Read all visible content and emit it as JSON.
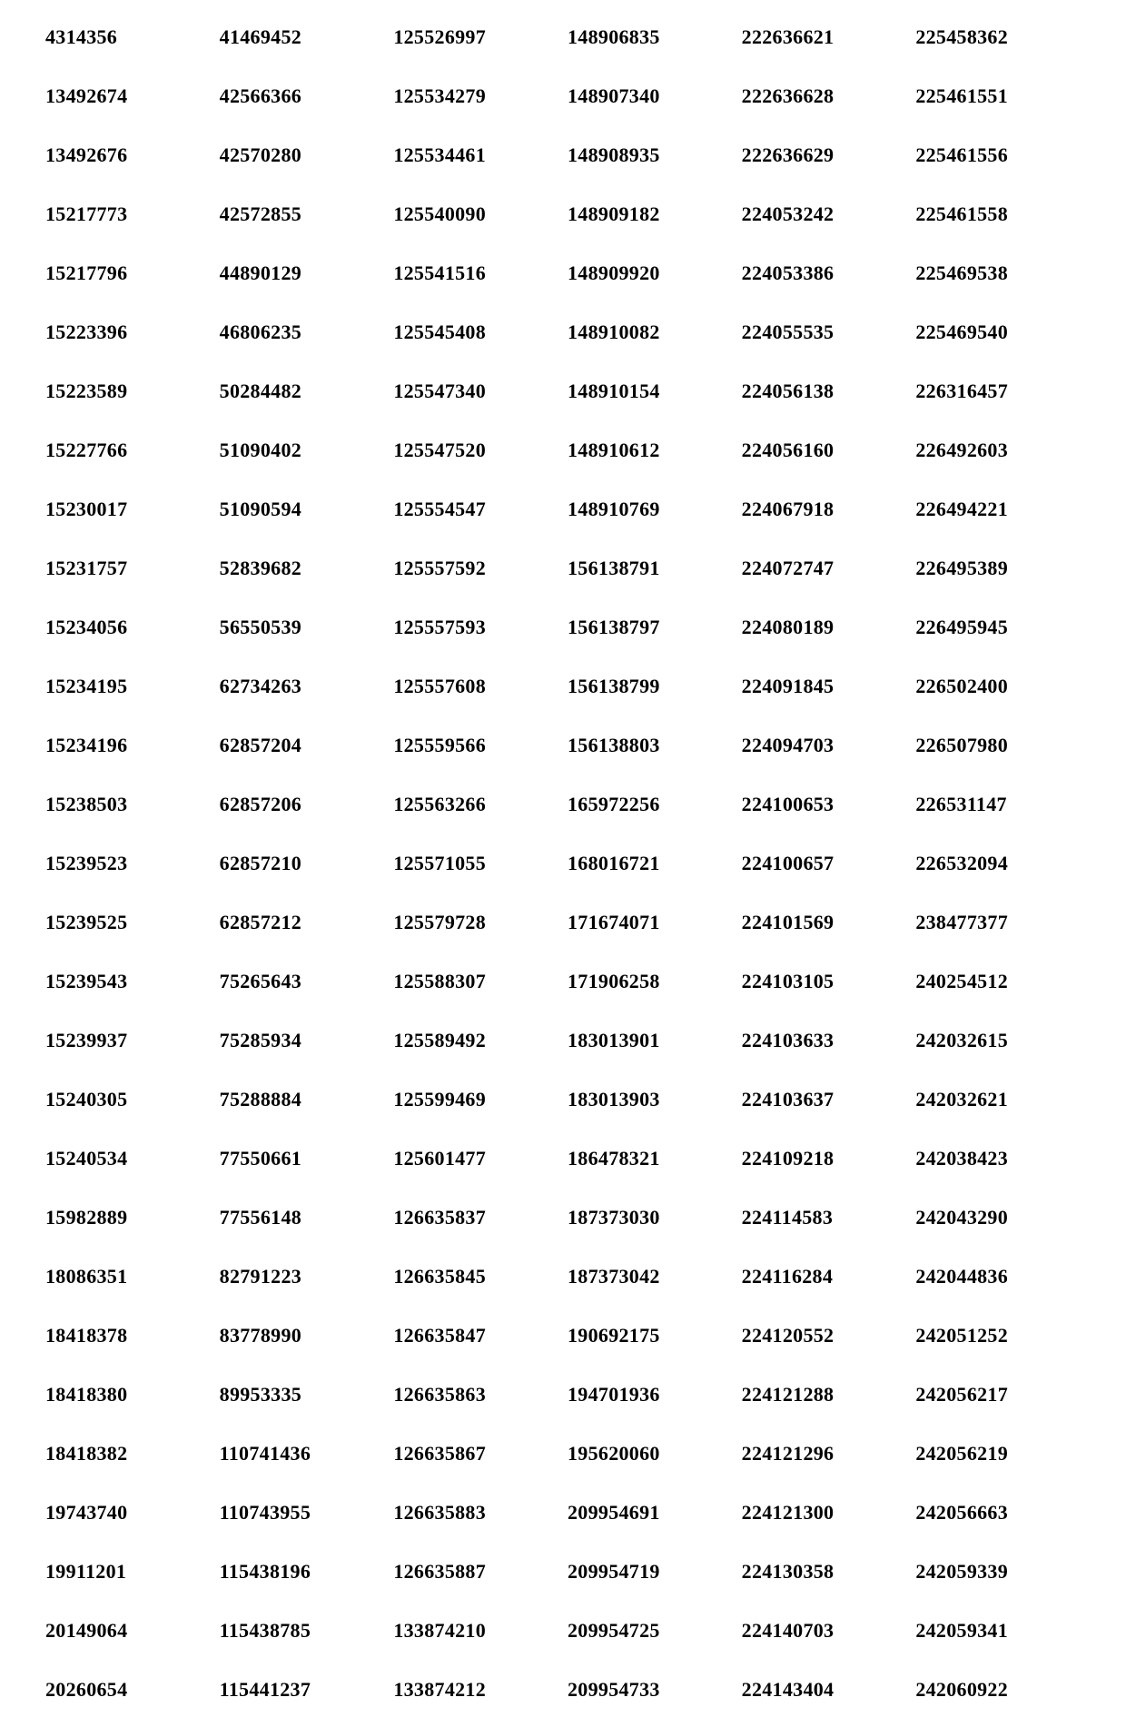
{
  "table": {
    "type": "table",
    "columns": 6,
    "rows": 29,
    "font_family": "Times New Roman",
    "font_weight": "bold",
    "font_size": 22,
    "text_color": "#000000",
    "background_color": "#ffffff",
    "data": [
      [
        "4314356",
        "41469452",
        "125526997",
        "148906835",
        "222636621",
        "225458362"
      ],
      [
        "13492674",
        "42566366",
        "125534279",
        "148907340",
        "222636628",
        "225461551"
      ],
      [
        "13492676",
        "42570280",
        "125534461",
        "148908935",
        "222636629",
        "225461556"
      ],
      [
        "15217773",
        "42572855",
        "125540090",
        "148909182",
        "224053242",
        "225461558"
      ],
      [
        "15217796",
        "44890129",
        "125541516",
        "148909920",
        "224053386",
        "225469538"
      ],
      [
        "15223396",
        "46806235",
        "125545408",
        "148910082",
        "224055535",
        "225469540"
      ],
      [
        "15223589",
        "50284482",
        "125547340",
        "148910154",
        "224056138",
        "226316457"
      ],
      [
        "15227766",
        "51090402",
        "125547520",
        "148910612",
        "224056160",
        "226492603"
      ],
      [
        "15230017",
        "51090594",
        "125554547",
        "148910769",
        "224067918",
        "226494221"
      ],
      [
        "15231757",
        "52839682",
        "125557592",
        "156138791",
        "224072747",
        "226495389"
      ],
      [
        "15234056",
        "56550539",
        "125557593",
        "156138797",
        "224080189",
        "226495945"
      ],
      [
        "15234195",
        "62734263",
        "125557608",
        "156138799",
        "224091845",
        "226502400"
      ],
      [
        "15234196",
        "62857204",
        "125559566",
        "156138803",
        "224094703",
        "226507980"
      ],
      [
        "15238503",
        "62857206",
        "125563266",
        "165972256",
        "224100653",
        "226531147"
      ],
      [
        "15239523",
        "62857210",
        "125571055",
        "168016721",
        "224100657",
        "226532094"
      ],
      [
        "15239525",
        "62857212",
        "125579728",
        "171674071",
        "224101569",
        "238477377"
      ],
      [
        "15239543",
        "75265643",
        "125588307",
        "171906258",
        "224103105",
        "240254512"
      ],
      [
        "15239937",
        "75285934",
        "125589492",
        "183013901",
        "224103633",
        "242032615"
      ],
      [
        "15240305",
        "75288884",
        "125599469",
        "183013903",
        "224103637",
        "242032621"
      ],
      [
        "15240534",
        "77550661",
        "125601477",
        "186478321",
        "224109218",
        "242038423"
      ],
      [
        "15982889",
        "77556148",
        "126635837",
        "187373030",
        "224114583",
        "242043290"
      ],
      [
        "18086351",
        "82791223",
        "126635845",
        "187373042",
        "224116284",
        "242044836"
      ],
      [
        "18418378",
        "83778990",
        "126635847",
        "190692175",
        "224120552",
        "242051252"
      ],
      [
        "18418380",
        "89953335",
        "126635863",
        "194701936",
        "224121288",
        "242056217"
      ],
      [
        "18418382",
        "110741436",
        "126635867",
        "195620060",
        "224121296",
        "242056219"
      ],
      [
        "19743740",
        "110743955",
        "126635883",
        "209954691",
        "224121300",
        "242056663"
      ],
      [
        "19911201",
        "115438196",
        "126635887",
        "209954719",
        "224130358",
        "242059339"
      ],
      [
        "20149064",
        "115438785",
        "133874210",
        "209954725",
        "224140703",
        "242059341"
      ],
      [
        "20260654",
        "115441237",
        "133874212",
        "209954733",
        "224143404",
        "242060922"
      ]
    ]
  }
}
